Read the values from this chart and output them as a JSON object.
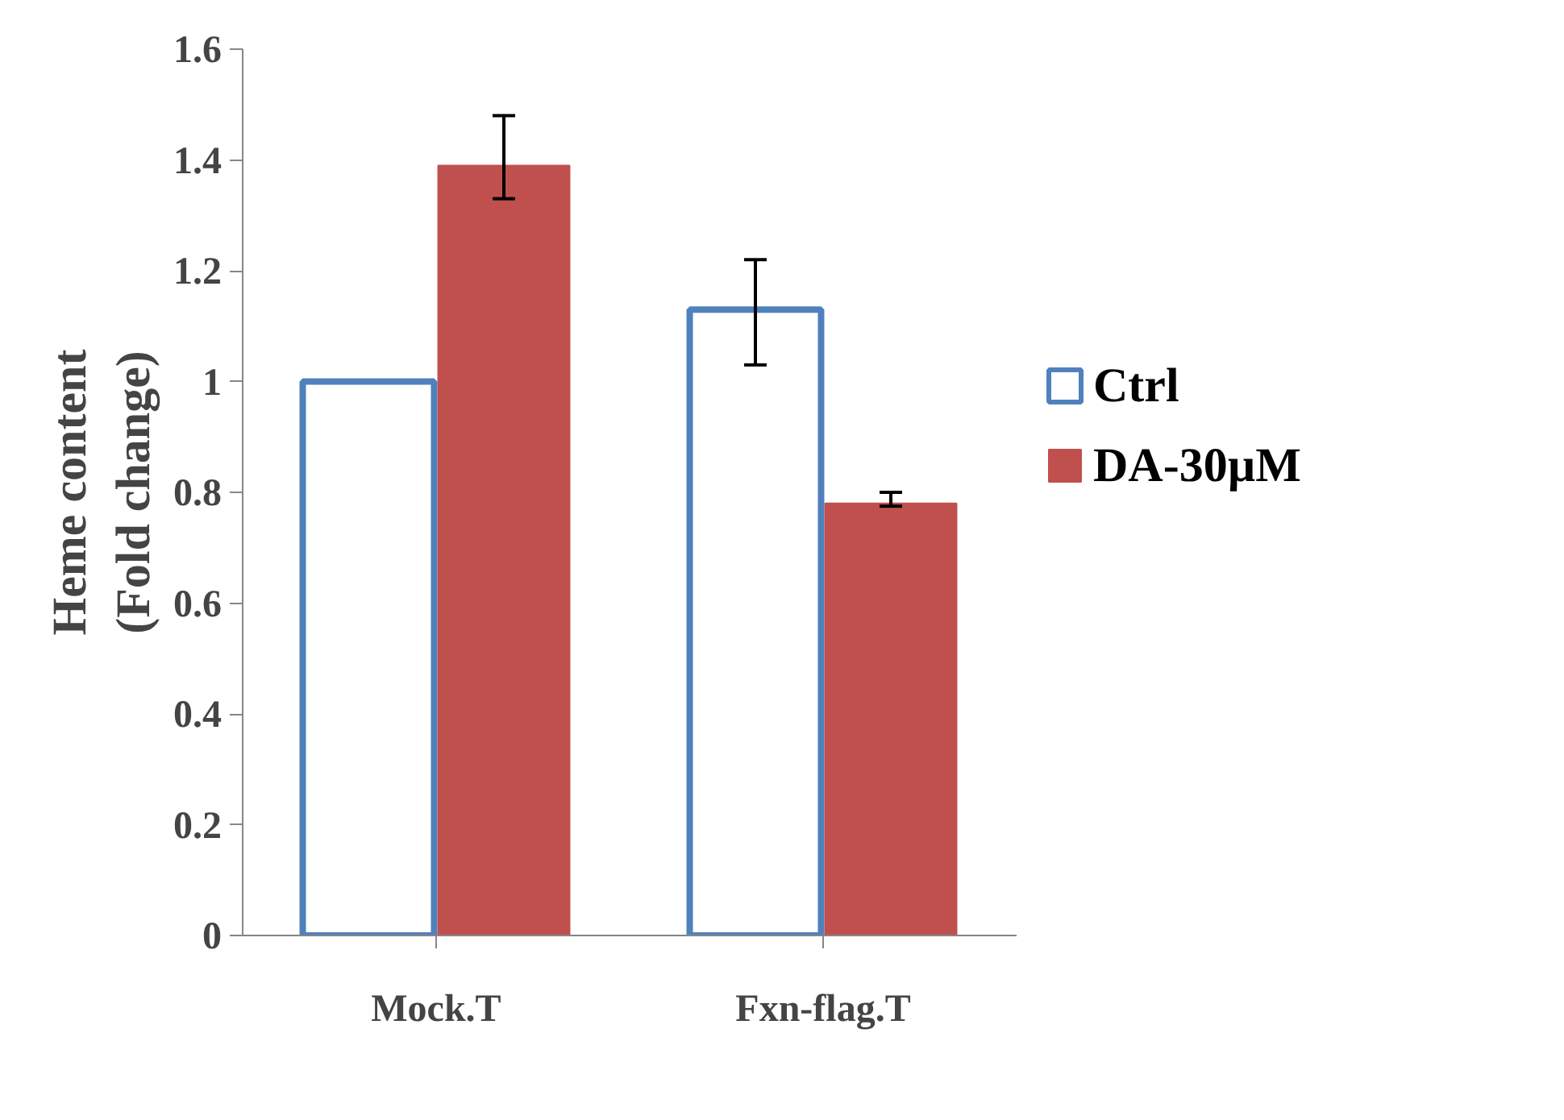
{
  "chart_data": {
    "type": "bar",
    "ylabel": "Heme content\n(Fold change)",
    "categories": [
      "Mock.T",
      "Fxn-flag.T"
    ],
    "series": [
      {
        "name": "Ctrl",
        "color": "#4f81bd",
        "colors": [
          "#ffffff",
          "#ffffff"
        ],
        "values": [
          1.0,
          1.13
        ],
        "errors": [
          null,
          [
            1.03,
            1.22
          ]
        ]
      },
      {
        "name": "DA-30µM",
        "color": "#c0504d",
        "values": [
          1.39,
          0.78
        ],
        "errors": [
          [
            1.33,
            1.48
          ],
          [
            0.775,
            0.8
          ]
        ]
      }
    ],
    "ylim": [
      0,
      1.6
    ],
    "yticks": [
      0,
      {
        "value": 0.2,
        "label": "0.2"
      },
      {
        "value": 0.4,
        "label": "0.4"
      },
      {
        "value": 0.6,
        "label": "0.6"
      },
      {
        "value": 0.8,
        "label": "0.8"
      },
      1,
      {
        "value": 1.2,
        "label": "1.2"
      },
      {
        "value": 1.4,
        "label": "1.4"
      },
      {
        "value": 1.6,
        "label": "1.6"
      }
    ],
    "grid": false,
    "legend": "right"
  }
}
